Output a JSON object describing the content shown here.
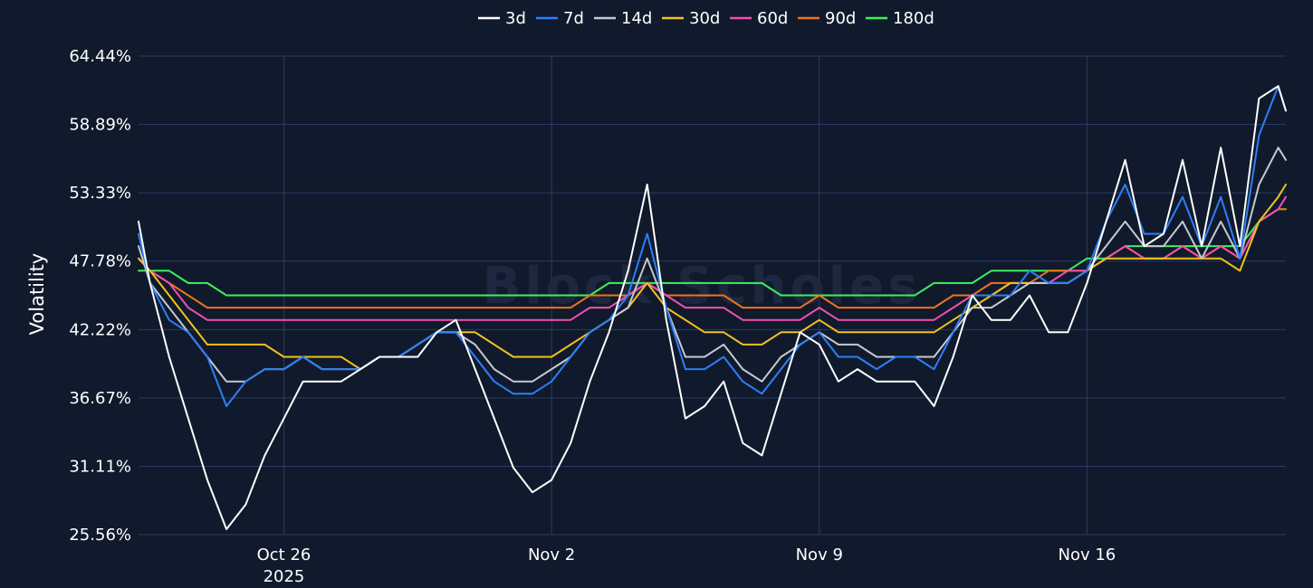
{
  "chart_data": {
    "type": "line",
    "watermark": "Block Scholes",
    "ylabel": "Volatility",
    "xlabel": "",
    "y_ticks": [
      "25.56%",
      "31.11%",
      "36.67%",
      "42.22%",
      "47.78%",
      "53.33%",
      "58.89%",
      "64.44%"
    ],
    "ylim": [
      25.56,
      64.44
    ],
    "x_tick_labels": [
      {
        "label": "Oct 26",
        "sub": "2025",
        "day": 5
      },
      {
        "label": "Nov 2",
        "sub": "",
        "day": 12
      },
      {
        "label": "Nov 9",
        "sub": "",
        "day": 19
      },
      {
        "label": "Nov 16",
        "sub": "",
        "day": 26
      }
    ],
    "xlim_days": [
      1.2,
      31.2
    ],
    "x_days": [
      1.2,
      1.5,
      2,
      2.5,
      3,
      3.5,
      4,
      4.5,
      5,
      5.5,
      6,
      6.5,
      7,
      7.5,
      8,
      8.5,
      9,
      9.5,
      10,
      10.5,
      11,
      11.5,
      12,
      12.5,
      13,
      13.5,
      14,
      14.5,
      15,
      15.5,
      16,
      16.5,
      17,
      17.5,
      18,
      18.5,
      19,
      19.5,
      20,
      20.5,
      21,
      21.5,
      22,
      22.5,
      23,
      23.5,
      24,
      24.5,
      25,
      25.5,
      26,
      26.5,
      27,
      27.5,
      28,
      28.5,
      29,
      29.5,
      30,
      30.5,
      31,
      31.2
    ],
    "series": [
      {
        "name": "3d",
        "color": "#ffffff",
        "values": [
          51,
          46,
          40,
          35,
          30,
          26,
          28,
          32,
          35,
          38,
          38,
          38,
          39,
          40,
          40,
          40,
          42,
          43,
          39,
          35,
          31,
          29,
          30,
          33,
          38,
          42,
          47,
          54,
          43,
          35,
          36,
          38,
          33,
          32,
          37,
          42,
          41,
          38,
          39,
          38,
          38,
          38,
          36,
          40,
          45,
          43,
          43,
          45,
          42,
          42,
          46,
          51,
          56,
          49,
          50,
          56,
          49,
          57,
          49,
          61,
          62,
          60
        ]
      },
      {
        "name": "7d",
        "color": "#2d7ff9",
        "values": [
          50,
          46,
          43,
          42,
          40,
          36,
          38,
          39,
          39,
          40,
          39,
          39,
          39,
          40,
          40,
          41,
          42,
          42,
          40,
          38,
          37,
          37,
          38,
          40,
          42,
          43,
          45,
          50,
          44,
          39,
          39,
          40,
          38,
          37,
          39,
          41,
          42,
          40,
          40,
          39,
          40,
          40,
          39,
          42,
          45,
          45,
          45,
          47,
          46,
          46,
          47,
          51,
          54,
          50,
          50,
          53,
          49,
          53,
          48,
          58,
          62,
          60
        ]
      },
      {
        "name": "14d",
        "color": "#c5c9d1",
        "values": [
          49,
          46,
          44,
          42,
          40,
          38,
          38,
          39,
          39,
          40,
          39,
          39,
          39,
          40,
          40,
          41,
          42,
          42,
          41,
          39,
          38,
          38,
          39,
          40,
          42,
          43,
          44,
          48,
          44,
          40,
          40,
          41,
          39,
          38,
          40,
          41,
          42,
          41,
          41,
          40,
          40,
          40,
          40,
          42,
          44,
          44,
          45,
          46,
          46,
          46,
          47,
          49,
          51,
          49,
          49,
          51,
          48,
          51,
          48,
          54,
          57,
          56
        ]
      },
      {
        "name": "30d",
        "color": "#f2c21c",
        "values": [
          48,
          47,
          45,
          43,
          41,
          41,
          41,
          41,
          40,
          40,
          40,
          40,
          39,
          40,
          40,
          41,
          42,
          42,
          42,
          41,
          40,
          40,
          40,
          41,
          42,
          43,
          44,
          46,
          44,
          43,
          42,
          42,
          41,
          41,
          42,
          42,
          43,
          42,
          42,
          42,
          42,
          42,
          42,
          43,
          44,
          45,
          46,
          46,
          46,
          46,
          47,
          48,
          48,
          48,
          48,
          48,
          48,
          48,
          47,
          51,
          53,
          54
        ]
      },
      {
        "name": "60d",
        "color": "#f24fae",
        "values": [
          48,
          47,
          46,
          44,
          43,
          43,
          43,
          43,
          43,
          43,
          43,
          43,
          43,
          43,
          43,
          43,
          43,
          43,
          43,
          43,
          43,
          43,
          43,
          43,
          44,
          44,
          45,
          46,
          45,
          44,
          44,
          44,
          43,
          43,
          43,
          43,
          44,
          43,
          43,
          43,
          43,
          43,
          43,
          44,
          45,
          45,
          46,
          46,
          46,
          47,
          47,
          48,
          49,
          48,
          48,
          49,
          48,
          49,
          48,
          51,
          52,
          53
        ]
      },
      {
        "name": "90d",
        "color": "#f0731a",
        "values": [
          48,
          47,
          46,
          45,
          44,
          44,
          44,
          44,
          44,
          44,
          44,
          44,
          44,
          44,
          44,
          44,
          44,
          44,
          44,
          44,
          44,
          44,
          44,
          44,
          45,
          45,
          45,
          46,
          45,
          45,
          45,
          45,
          44,
          44,
          44,
          44,
          45,
          44,
          44,
          44,
          44,
          44,
          44,
          45,
          45,
          46,
          46,
          46,
          47,
          47,
          47,
          48,
          49,
          48,
          48,
          49,
          48,
          49,
          48,
          51,
          52,
          52
        ]
      },
      {
        "name": "180d",
        "color": "#3ef05a",
        "values": [
          47,
          47,
          47,
          46,
          46,
          45,
          45,
          45,
          45,
          45,
          45,
          45,
          45,
          45,
          45,
          45,
          45,
          45,
          45,
          45,
          45,
          45,
          45,
          45,
          45,
          46,
          46,
          46,
          46,
          46,
          46,
          46,
          46,
          46,
          45,
          45,
          45,
          45,
          45,
          45,
          45,
          45,
          46,
          46,
          46,
          47,
          47,
          47,
          47,
          47,
          48,
          48,
          49,
          49,
          49,
          49,
          49,
          49,
          49,
          51,
          52,
          52
        ]
      }
    ]
  }
}
